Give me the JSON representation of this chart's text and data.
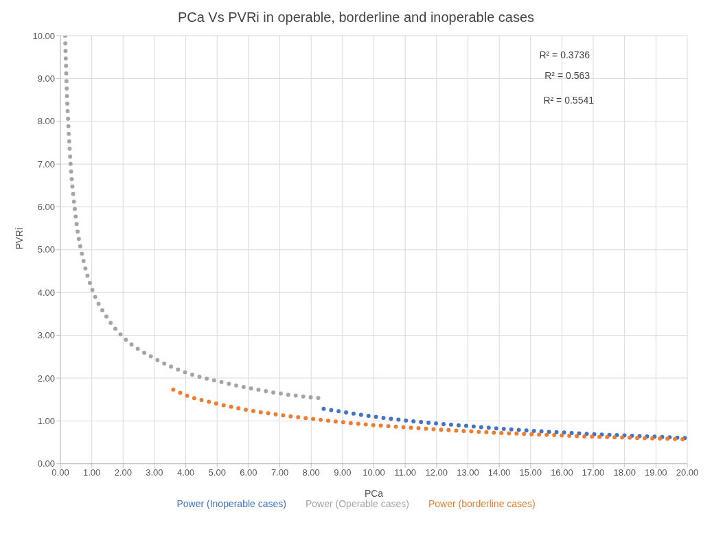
{
  "chart_data": {
    "type": "line",
    "title": "PCa Vs PVRi in operable, borderline and inoperable cases",
    "xlabel": "PCa",
    "ylabel": "PVRi",
    "xlim": [
      0,
      20
    ],
    "xticks": [
      {
        "value": 0,
        "label": "0.00"
      },
      {
        "value": 1,
        "label": "1.00"
      },
      {
        "value": 2,
        "label": "2.00"
      },
      {
        "value": 3,
        "label": "3.00"
      },
      {
        "value": 4,
        "label": "4.00"
      },
      {
        "value": 5,
        "label": "5.00"
      },
      {
        "value": 6,
        "label": "6.00"
      },
      {
        "value": 7,
        "label": "7.00"
      },
      {
        "value": 8,
        "label": "8.00"
      },
      {
        "value": 9,
        "label": "9.00"
      },
      {
        "value": 10,
        "label": "10.00"
      },
      {
        "value": 11,
        "label": "11.00"
      },
      {
        "value": 12,
        "label": "12.00"
      },
      {
        "value": 13,
        "label": "13.00"
      },
      {
        "value": 14,
        "label": "14.00"
      },
      {
        "value": 15,
        "label": "15.00"
      },
      {
        "value": 16,
        "label": "16.00"
      },
      {
        "value": 17,
        "label": "17.00"
      },
      {
        "value": 18,
        "label": "18.00"
      },
      {
        "value": 19,
        "label": "19.00"
      },
      {
        "value": 20,
        "label": "20.00"
      }
    ],
    "ylim": [
      0,
      10
    ],
    "yticks": [
      {
        "value": 0,
        "label": "0.00"
      },
      {
        "value": 1,
        "label": "1.00"
      },
      {
        "value": 2,
        "label": "2.00"
      },
      {
        "value": 3,
        "label": "3.00"
      },
      {
        "value": 4,
        "label": "4.00"
      },
      {
        "value": 5,
        "label": "5.00"
      },
      {
        "value": 6,
        "label": "6.00"
      },
      {
        "value": 7,
        "label": "7.00"
      },
      {
        "value": 8,
        "label": "8.00"
      },
      {
        "value": 9,
        "label": "9.00"
      },
      {
        "value": 10,
        "label": "10.00"
      }
    ],
    "grid": true,
    "legend": "bottom",
    "line_style": "dotted",
    "marker": "none",
    "series": [
      {
        "name": "Power (Inoperable cases)",
        "color": "#4472c4",
        "x": [
          8.4,
          9,
          10,
          11,
          12,
          13,
          14,
          15,
          16,
          17,
          18,
          19,
          20
        ],
        "values": [
          1.28,
          1.21,
          1.1,
          1.01,
          0.94,
          0.88,
          0.82,
          0.77,
          0.73,
          0.69,
          0.66,
          0.63,
          0.6
        ]
      },
      {
        "name": "Power (borderline cases)",
        "color": "#ed7d31",
        "x": [
          3.6,
          4,
          5,
          6,
          7,
          8,
          9,
          10,
          11,
          12,
          13,
          14,
          15,
          16,
          17,
          18,
          19,
          20
        ],
        "values": [
          1.73,
          1.6,
          1.4,
          1.25,
          1.14,
          1.05,
          0.97,
          0.9,
          0.85,
          0.8,
          0.76,
          0.72,
          0.69,
          0.66,
          0.63,
          0.61,
          0.59,
          0.57
        ]
      },
      {
        "name": "Power (Operable cases)",
        "color": "#a5a5a5",
        "x": [
          0.15,
          0.2,
          0.3,
          0.5,
          0.75,
          1,
          1.5,
          2,
          3,
          4,
          5,
          6,
          7,
          8,
          8.4
        ],
        "values": [
          10,
          8.8,
          7.3,
          5.7,
          4.7,
          4.1,
          3.4,
          2.96,
          2.46,
          2.13,
          1.93,
          1.77,
          1.64,
          1.55,
          1.52
        ]
      }
    ],
    "annotations": [
      "R² = 0.3736",
      "R² = 0.563",
      "R² = 0.5541"
    ]
  }
}
